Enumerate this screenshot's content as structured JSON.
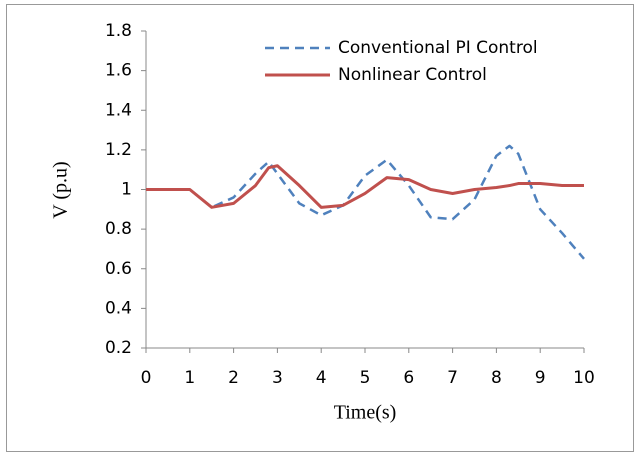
{
  "chart_data": {
    "type": "line",
    "x": [
      0,
      0.5,
      1,
      1.5,
      2,
      2.5,
      2.8,
      3,
      3.5,
      4,
      4.5,
      5,
      5.5,
      6,
      6.5,
      7,
      7.5,
      8,
      8.3,
      8.5,
      9,
      9.5,
      10
    ],
    "series": [
      {
        "name": "Conventional PI Control",
        "color": "#4f81bd",
        "dashed": true,
        "values": [
          1.0,
          1.0,
          1.0,
          0.91,
          0.96,
          1.08,
          1.14,
          1.08,
          0.93,
          0.87,
          0.92,
          1.07,
          1.15,
          1.02,
          0.86,
          0.85,
          0.95,
          1.17,
          1.22,
          1.18,
          0.9,
          0.78,
          0.65
        ]
      },
      {
        "name": "Nonlinear Control",
        "color": "#c0504d",
        "dashed": false,
        "values": [
          1.0,
          1.0,
          1.0,
          0.91,
          0.93,
          1.02,
          1.11,
          1.12,
          1.02,
          0.91,
          0.92,
          0.98,
          1.06,
          1.05,
          1.0,
          0.98,
          1.0,
          1.01,
          1.02,
          1.03,
          1.03,
          1.02,
          1.02
        ]
      }
    ],
    "xlabel": "Time(s)",
    "ylabel": "V (p.u)",
    "xlim": [
      0,
      10
    ],
    "xticks": [
      0,
      1,
      2,
      3,
      4,
      5,
      6,
      7,
      8,
      9,
      10
    ],
    "ylim": [
      0.2,
      1.8
    ],
    "yticks": [
      0.2,
      0.4,
      0.6,
      0.8,
      1,
      1.2,
      1.4,
      1.6,
      1.8
    ],
    "grid": false,
    "legend": "upper right"
  }
}
